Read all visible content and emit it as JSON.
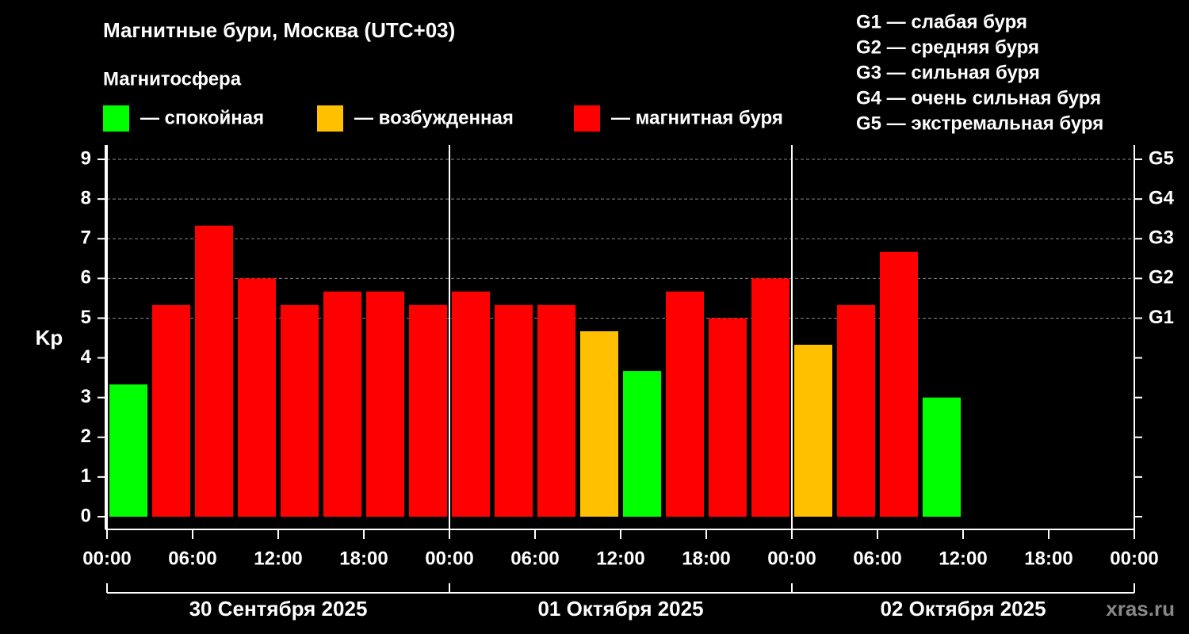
{
  "chart_data": {
    "type": "bar",
    "title": "Магнитные бури, Москва (UTC+03)",
    "subtitle": "Магнитосфера",
    "ylabel": "Kp",
    "watermark": "xras.ru",
    "legend": [
      {
        "label": "— спокойная",
        "color": "#00ff00"
      },
      {
        "label": "— возбужденная",
        "color": "#ffc000"
      },
      {
        "label": "— магнитная буря",
        "color": "#ff0000"
      }
    ],
    "storm_levels": [
      "G1 — слабая буря",
      "G2 — средняя буря",
      "G3 — сильная буря",
      "G4 — очень сильная буря",
      "G5 — экстремальная буря"
    ],
    "x": [
      0,
      3,
      6,
      9,
      12,
      15,
      18,
      21,
      24,
      27,
      30,
      33,
      36,
      39,
      42,
      45,
      48,
      51,
      54,
      57
    ],
    "bar_width": 3,
    "values": [
      3.33,
      5.33,
      7.33,
      6,
      5.33,
      5.67,
      5.67,
      5.33,
      5.67,
      5.33,
      5.33,
      4.67,
      3.67,
      5.67,
      5,
      6,
      4.33,
      5.33,
      6.67,
      3
    ],
    "colors": [
      "#00ff00",
      "#ff0000",
      "#ff0000",
      "#ff0000",
      "#ff0000",
      "#ff0000",
      "#ff0000",
      "#ff0000",
      "#ff0000",
      "#ff0000",
      "#ff0000",
      "#ffc000",
      "#00ff00",
      "#ff0000",
      "#ff0000",
      "#ff0000",
      "#ffc000",
      "#ff0000",
      "#ff0000",
      "#00ff00"
    ],
    "xlim": [
      0,
      72
    ],
    "xticks": [
      {
        "value": 0,
        "label": "00:00"
      },
      {
        "value": 6,
        "label": "06:00"
      },
      {
        "value": 12,
        "label": "12:00"
      },
      {
        "value": 18,
        "label": "18:00"
      },
      {
        "value": 24,
        "label": "00:00"
      },
      {
        "value": 30,
        "label": "06:00"
      },
      {
        "value": 36,
        "label": "12:00"
      },
      {
        "value": 42,
        "label": "18:00"
      },
      {
        "value": 48,
        "label": "00:00"
      },
      {
        "value": 54,
        "label": "06:00"
      },
      {
        "value": 60,
        "label": "12:00"
      },
      {
        "value": 66,
        "label": "18:00"
      },
      {
        "value": 72,
        "label": "00:00"
      }
    ],
    "days": [
      {
        "label": "30 Сентября 2025",
        "start": 0,
        "end": 24
      },
      {
        "label": "01 Октября 2025",
        "start": 24,
        "end": 48
      },
      {
        "label": "02 Октября 2025",
        "start": 48,
        "end": 72
      }
    ],
    "ylim": [
      -0.32,
      9.36
    ],
    "yticks": [
      0,
      1,
      2,
      3,
      4,
      5,
      6,
      7,
      8,
      9
    ],
    "y2lim": [
      -0.32,
      9.36
    ],
    "y2ticks": [
      {
        "value": 5,
        "label": "G1"
      },
      {
        "value": 6,
        "label": "G2"
      },
      {
        "value": 7,
        "label": "G3"
      },
      {
        "value": 8,
        "label": "G4"
      },
      {
        "value": 9,
        "label": "G5"
      }
    ],
    "grid": true
  }
}
